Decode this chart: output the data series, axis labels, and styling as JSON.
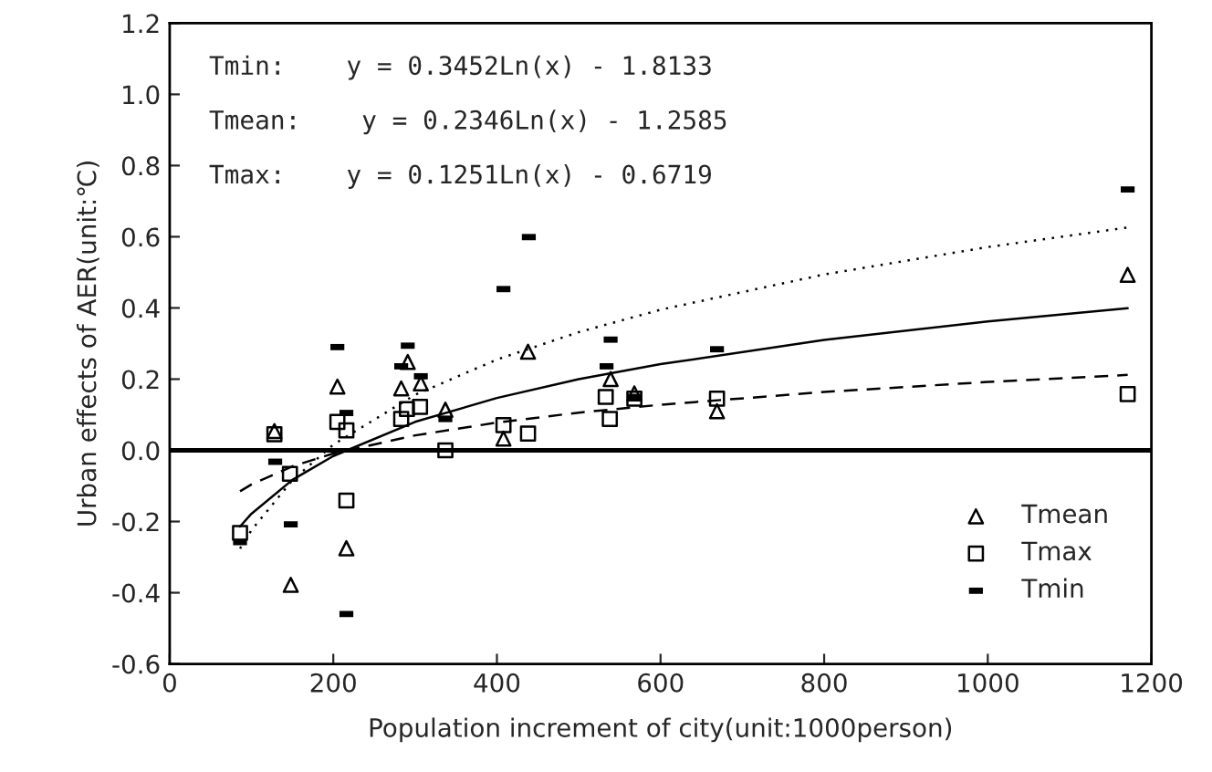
{
  "chart_data": {
    "type": "scatter",
    "xlabel": "Population increment of city(unit:1000person)",
    "ylabel": "Urban effects of AER(unit:℃)",
    "annotations": [
      "Tmin:    y = 0.3452Ln(x) - 1.8133",
      "Tmean:    y = 0.2346Ln(x) - 1.2585",
      "Tmax:    y = 0.1251Ln(x) - 0.6719"
    ],
    "xlim": [
      0,
      1200
    ],
    "xticks": [
      0,
      200,
      400,
      600,
      800,
      1000,
      1200
    ],
    "ylim": [
      -0.6,
      1.2
    ],
    "yticks": [
      -0.6,
      -0.4,
      -0.2,
      {
        "value": 0,
        "label": "0.0"
      },
      0.2,
      0.4,
      0.6,
      0.8,
      {
        "value": 1,
        "label": "1.0"
      },
      1.2
    ],
    "grid": false,
    "legend": "bottom right",
    "ref_lines": [
      {
        "axis": "y",
        "value": 0,
        "color": "#000000",
        "line_style": "solid"
      }
    ],
    "series": [
      {
        "name": "Tmean",
        "marker": "triangle",
        "color": "#000000",
        "x": [
          128,
          148,
          205,
          216,
          283,
          291,
          307,
          337,
          408,
          438,
          539,
          568,
          669,
          1171
        ],
        "values": [
          0.054,
          -0.378,
          0.179,
          -0.275,
          0.174,
          0.248,
          0.188,
          0.114,
          0.033,
          0.277,
          0.2,
          0.16,
          0.11,
          0.493
        ]
      },
      {
        "name": "Tmax",
        "marker": "square",
        "color": "#000000",
        "x": [
          86,
          128,
          147,
          205,
          216,
          216,
          283,
          290,
          306,
          337,
          408,
          438,
          533,
          538,
          568,
          669,
          1171
        ],
        "values": [
          -0.232,
          0.045,
          -0.066,
          0.08,
          0.056,
          -0.141,
          0.088,
          0.116,
          0.122,
          0.0,
          0.071,
          0.047,
          0.15,
          0.088,
          0.145,
          0.145,
          0.158
        ]
      },
      {
        "name": "Tmin",
        "color": "#000000",
        "x": [
          86,
          129,
          148,
          205,
          216,
          216,
          283,
          291,
          307,
          337,
          408,
          439,
          534,
          539,
          568,
          669,
          1171
        ],
        "values": [
          -0.258,
          -0.032,
          -0.208,
          0.29,
          0.105,
          -0.46,
          0.236,
          0.294,
          0.208,
          0.088,
          0.453,
          0.599,
          0.236,
          0.311,
          0.15,
          0.284,
          0.733
        ]
      },
      {
        "type": "line",
        "line_style": "dotted",
        "color": "#000000",
        "x": [
          86,
          100,
          150,
          200,
          300,
          400,
          500,
          600,
          800,
          1000,
          1171
        ],
        "values": [
          -0.276,
          -0.224,
          -0.084,
          0.016,
          0.156,
          0.255,
          0.332,
          0.395,
          0.494,
          0.571,
          0.626
        ]
      },
      {
        "type": "line",
        "line_style": "solid",
        "color": "#000000",
        "x": [
          86,
          100,
          150,
          200,
          300,
          400,
          500,
          600,
          800,
          1000,
          1171
        ],
        "values": [
          -0.214,
          -0.178,
          -0.083,
          -0.016,
          0.08,
          0.147,
          0.2,
          0.242,
          0.31,
          0.362,
          0.399
        ]
      },
      {
        "type": "line",
        "line_style": "dashed",
        "color": "#000000",
        "x": [
          86,
          100,
          150,
          200,
          300,
          400,
          500,
          600,
          800,
          1000,
          1171
        ],
        "values": [
          -0.115,
          -0.096,
          -0.045,
          -0.009,
          0.042,
          0.078,
          0.106,
          0.128,
          0.164,
          0.192,
          0.212
        ]
      }
    ]
  }
}
